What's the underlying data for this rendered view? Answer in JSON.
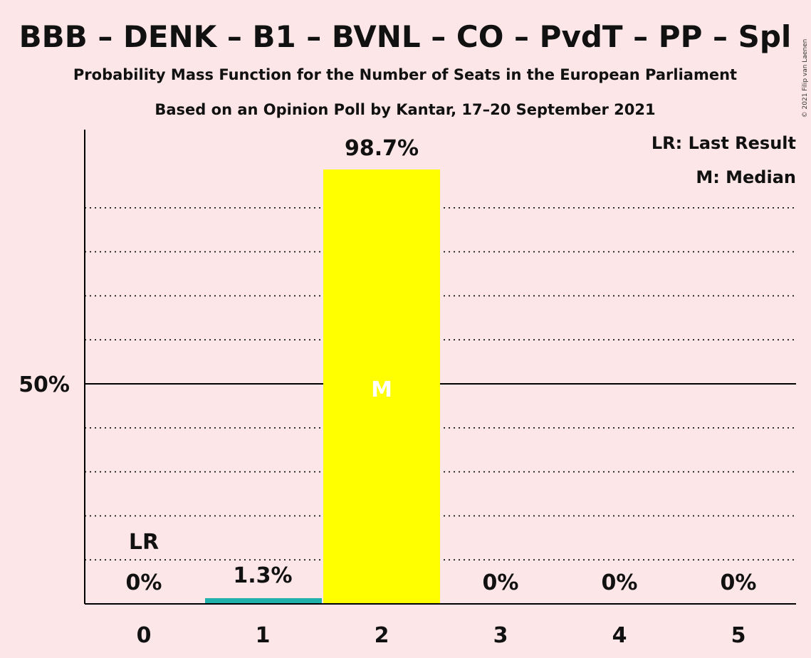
{
  "title": "BBB – DENK – B1 – BVNL – CO – PvdT – PP – Spl",
  "subtitle_1": "Probability Mass Function for the Number of Seats in the European Parliament",
  "subtitle_2": "Based on an Opinion Poll by Kantar, 17–20 September 2021",
  "copyright": "© 2021 Filip van Laenen",
  "legend": {
    "last_result": "LR: Last Result",
    "median": "M: Median"
  },
  "colors": {
    "background": "#fce6e7",
    "median_bar": "#ffff00",
    "other_bar": "#20b2aa",
    "axis": "#000000"
  },
  "chart_data": {
    "type": "bar",
    "categories": [
      "0",
      "1",
      "2",
      "3",
      "4",
      "5"
    ],
    "values": [
      0,
      1.3,
      98.7,
      0,
      0,
      0
    ],
    "labels": [
      "0%",
      "1.3%",
      "98.7%",
      "0%",
      "0%",
      "0%"
    ],
    "ylim": [
      0,
      100
    ],
    "ytick_value": 50,
    "ytick_label": "50%",
    "last_result_index": 0,
    "last_result_label": "LR",
    "median_index": 2,
    "median_label": "M",
    "grid": "dotted every 10%"
  }
}
